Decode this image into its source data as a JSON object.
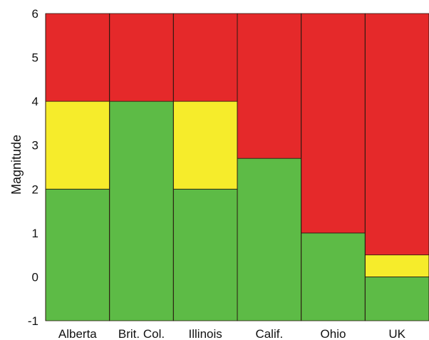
{
  "chart_data": {
    "type": "bar",
    "subtype": "stacked",
    "title": "",
    "xlabel": "",
    "ylabel": "Magnitude",
    "ylim": [
      -1,
      6
    ],
    "yticks": [
      -1,
      0,
      1,
      2,
      3,
      4,
      5,
      6
    ],
    "grid": false,
    "categories": [
      "Alberta",
      "Brit. Col.",
      "Illinois",
      "Calif.",
      "Ohio",
      "UK"
    ],
    "series": [
      {
        "color": "#5dbb46",
        "ranges": [
          [
            -1,
            2
          ],
          [
            -1,
            4
          ],
          [
            -1,
            2
          ],
          [
            -1,
            2.7
          ],
          [
            -1,
            1
          ],
          [
            -1,
            0
          ]
        ]
      },
      {
        "color": "#f6ec2b",
        "ranges": [
          [
            2,
            4
          ],
          null,
          [
            2,
            4
          ],
          null,
          null,
          [
            0,
            0.5
          ]
        ]
      },
      {
        "color": "#e5292a",
        "ranges": [
          [
            4,
            6
          ],
          [
            4,
            6
          ],
          [
            4,
            6
          ],
          [
            2.7,
            6
          ],
          [
            1,
            6
          ],
          [
            0.5,
            6
          ]
        ]
      }
    ]
  }
}
